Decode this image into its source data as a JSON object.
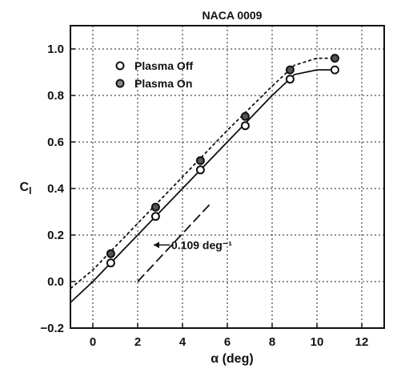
{
  "chart_data": {
    "type": "line",
    "title": "NACA 0009",
    "xlabel": "α (deg)",
    "ylabel": "C_l",
    "xlim": [
      -1,
      13
    ],
    "ylim": [
      -0.2,
      1.1
    ],
    "x_ticks": [
      0,
      2,
      4,
      6,
      8,
      10,
      12
    ],
    "y_ticks": [
      -0.2,
      0.0,
      0.2,
      0.4,
      0.6,
      0.8,
      1.0
    ],
    "x_tick_labels": [
      "0",
      "2",
      "4",
      "6",
      "8",
      "10",
      "12"
    ],
    "y_tick_labels": [
      "−0.2",
      "0.0",
      "0.2",
      "0.4",
      "0.6",
      "0.8",
      "1.0"
    ],
    "grid": true,
    "legend_position": "top-left",
    "series": [
      {
        "name": "Plasma Off",
        "marker": "open-circle",
        "line_style": "solid",
        "points": [
          [
            0.8,
            0.08
          ],
          [
            2.8,
            0.28
          ],
          [
            4.8,
            0.48
          ],
          [
            6.8,
            0.67
          ],
          [
            8.8,
            0.87
          ],
          [
            10.8,
            0.91
          ]
        ],
        "fit_x": [
          -1,
          0,
          2,
          4,
          6,
          8,
          9,
          10,
          10.8
        ],
        "fit_y": [
          -0.09,
          0.0,
          0.2,
          0.4,
          0.6,
          0.8,
          0.89,
          0.91,
          0.91
        ]
      },
      {
        "name": "Plasma On",
        "marker": "filled-circle",
        "line_style": "dashed",
        "points": [
          [
            0.8,
            0.12
          ],
          [
            2.8,
            0.32
          ],
          [
            4.8,
            0.52
          ],
          [
            6.8,
            0.71
          ],
          [
            8.8,
            0.91
          ],
          [
            10.8,
            0.96
          ]
        ],
        "fit_x": [
          -1,
          0,
          2,
          4,
          6,
          8,
          9,
          10,
          10.8
        ],
        "fit_y": [
          -0.03,
          0.05,
          0.25,
          0.45,
          0.65,
          0.84,
          0.93,
          0.96,
          0.96
        ]
      }
    ],
    "reference_line": {
      "x": [
        2.0,
        5.2
      ],
      "y": [
        0.0,
        0.33
      ],
      "label": "0.109 deg⁻¹",
      "label_x": 3.5,
      "label_y": 0.14
    }
  }
}
